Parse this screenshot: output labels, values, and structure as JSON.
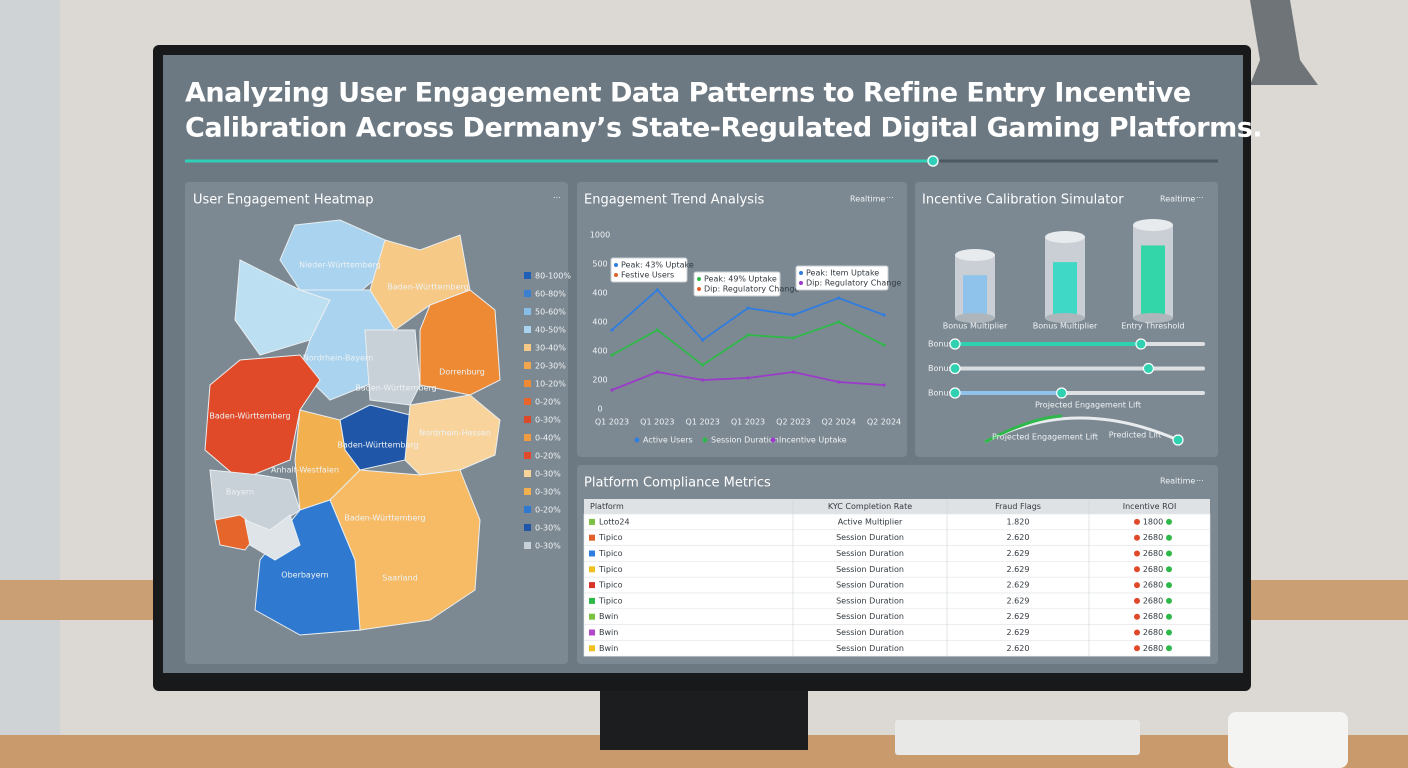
{
  "header": {
    "title_line1": "Analyzing User Engagement Data Patterns to Refine Entry Incentive",
    "title_line2": "Calibration Across Dermany’s State-Regulated Digital Gaming Platforms."
  },
  "heatmap": {
    "title": "User Engagement Heatmap",
    "menu": "···",
    "regions": [
      "Nieder-Württemberg",
      "Baden-Württemberg",
      "Nordrhein-Bayern",
      "Dorrenburg",
      "Baden-Württemberg",
      "Baden-Württemberg",
      "Baden-Württemberg",
      "Nordrhein-Hessen",
      "Anhalt-Westfalen",
      "Bayern",
      "Baden-Württemberg",
      "Oberbayern",
      "Saarland"
    ],
    "legend": [
      {
        "label": "80-100%",
        "color": "#1f5fb5"
      },
      {
        "label": "60-80%",
        "color": "#3b7fd0"
      },
      {
        "label": "50-60%",
        "color": "#86bde6"
      },
      {
        "label": "40-50%",
        "color": "#a9d3ee"
      },
      {
        "label": "30-40%",
        "color": "#f6c987"
      },
      {
        "label": "20-30%",
        "color": "#f2a64e"
      },
      {
        "label": "10-20%",
        "color": "#ee8a34"
      },
      {
        "label": "0-20%",
        "color": "#e6652a"
      },
      {
        "label": "0-30%",
        "color": "#d9492a"
      },
      {
        "label": "0-40%",
        "color": "#f09a42"
      },
      {
        "label": "0-20%",
        "color": "#e04a28"
      },
      {
        "label": "0-30%",
        "color": "#f8d49c"
      },
      {
        "label": "0-30%",
        "color": "#f2b04e"
      },
      {
        "label": "0-20%",
        "color": "#2f7ad0"
      },
      {
        "label": "0-30%",
        "color": "#1f56a8"
      },
      {
        "label": "0-30%",
        "color": "#c8d0d8"
      }
    ]
  },
  "trend": {
    "title": "Engagement Trend Analysis",
    "status": "Realtime",
    "menu": "···",
    "y_labels": [
      "1000",
      "500",
      "400",
      "400",
      "400",
      "200",
      "0"
    ],
    "categories": [
      "Q1 2023",
      "Q1 2023",
      "Q1 2023",
      "Q1 2023",
      "Q2 2023",
      "Q2 2024",
      "Q2 2024"
    ],
    "series": [
      {
        "name": "Active Users",
        "color": "#2f7de0",
        "values": [
          552,
          828,
          483,
          703,
          655,
          772,
          655
        ]
      },
      {
        "name": "Session Duration",
        "color": "#2fb84a",
        "values": [
          379,
          552,
          310,
          517,
          497,
          607,
          448
        ]
      },
      {
        "name": "Incentive Uptake",
        "color": "#9a3bc9",
        "values": [
          138,
          262,
          207,
          221,
          262,
          193,
          172
        ]
      }
    ],
    "annotations": [
      [
        {
          "text": "Peak: 43% Uptake",
          "color": "#2f7de0"
        },
        {
          "text": "Festive Users",
          "color": "#e0602a"
        }
      ],
      [
        {
          "text": "Peak: 49% Uptake",
          "color": "#2fb84a"
        },
        {
          "text": "Dip: Regulatory Change",
          "color": "#e0602a"
        }
      ],
      [
        {
          "text": "Peak: Item Uptake",
          "color": "#2f7de0"
        },
        {
          "text": "Dip: Regulatory Change",
          "color": "#9a3bc9"
        }
      ]
    ]
  },
  "simulator": {
    "title": "Incentive Calibration Simulator",
    "status": "Realtime",
    "menu": "···",
    "cylinders": [
      {
        "label": "Bonus Multiplier",
        "level": 68,
        "color": "#8fc3ec"
      },
      {
        "label": "Bonus Multiplier",
        "level": 69,
        "color": "#3fd8c6"
      },
      {
        "label": "Entry Threshold",
        "level": 78,
        "color": "#33d6a8"
      }
    ],
    "sliders": [
      {
        "label": "Bonus",
        "value": 75,
        "color": "#2fd1b0"
      },
      {
        "label": "Bonus",
        "value": 78,
        "color": "#d8dde2"
      },
      {
        "label": "Bonus",
        "value": 43,
        "color": "#8fc3ec"
      }
    ],
    "lift_label": "Projected Engagement Lift",
    "lift_label2": "Projected Engagement Lift",
    "lift_end": "Predicted Lift"
  },
  "compliance": {
    "title": "Platform Compliance Metrics",
    "status": "Realtime",
    "menu": "···",
    "headers": [
      "Platform",
      "KYC Completion Rate",
      "Fraud Flags",
      "Incentive ROI"
    ],
    "rows": [
      [
        {
          "text": "Lotto24",
          "color": "#7cc242"
        },
        "Active Multiplier",
        "1.820",
        "1800"
      ],
      [
        {
          "text": "Tipico",
          "color": "#e0602a"
        },
        "Session Duration",
        "2.620",
        "2680"
      ],
      [
        {
          "text": "Tipico",
          "color": "#2f7de0"
        },
        "Session Duration",
        "2.629",
        "2680"
      ],
      [
        {
          "text": "Tipico",
          "color": "#f0c020"
        },
        "Session Duration",
        "2.629",
        "2680"
      ],
      [
        {
          "text": "Tipico",
          "color": "#d9342a"
        },
        "Session Duration",
        "2.629",
        "2680"
      ],
      [
        {
          "text": "Tipico",
          "color": "#2fb84a"
        },
        "Session Duration",
        "2.629",
        "2680"
      ],
      [
        {
          "text": "Bwin",
          "color": "#7cc242"
        },
        "Session Duration",
        "2.629",
        "2680"
      ],
      [
        {
          "text": "Bwin",
          "color": "#b04ac9"
        },
        "Session Duration",
        "2.629",
        "2680"
      ],
      [
        {
          "text": "Bwin",
          "color": "#f0c020"
        },
        "Session Duration",
        "2.620",
        "2680"
      ]
    ]
  }
}
